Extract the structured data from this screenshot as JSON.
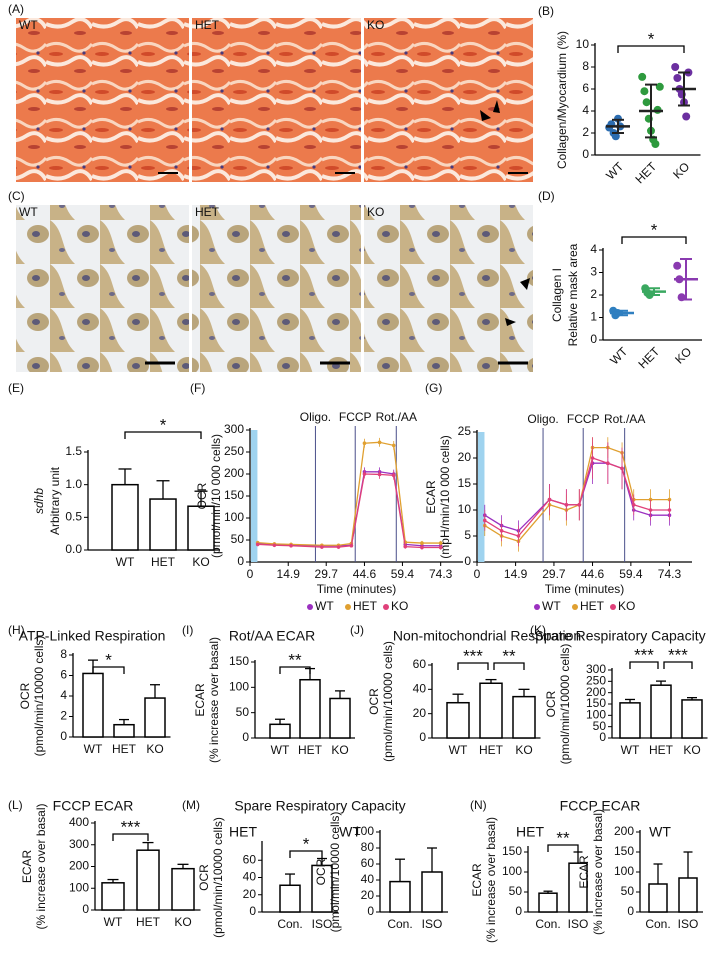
{
  "micrographs": [
    {
      "panel": "(A)",
      "labels": [
        "WT",
        "HET",
        "KO"
      ]
    },
    {
      "panel": "(C)",
      "labels": [
        "WT",
        "HET",
        "KO"
      ]
    }
  ],
  "chart_data": [
    {
      "type": "dot",
      "panel": "(B)",
      "ylabel": [
        "Collagen/Myocardium (%)"
      ],
      "categories": [
        "WT",
        "HET",
        "KO"
      ],
      "points": [
        [
          2.5,
          2.8,
          2.0,
          1.7,
          3.3,
          2.6
        ],
        [
          7.1,
          5.8,
          4.8,
          3.3,
          2.2,
          1.4,
          1.0,
          4.1,
          6.2
        ],
        [
          8.0,
          7.0,
          6.0,
          5.5,
          4.8,
          3.5,
          7.5
        ]
      ],
      "means": [
        2.6,
        4.0,
        6.0
      ],
      "sd": [
        0.6,
        2.4,
        1.5
      ],
      "colors": [
        "#2b6cb0",
        "#2e9a3e",
        "#6b2fa0"
      ],
      "summary_color": "#222222",
      "ylim": [
        0,
        10
      ],
      "yticks": [
        0,
        2,
        4,
        6,
        8,
        10
      ],
      "significance": [
        {
          "from": 0,
          "to": 2,
          "label": "*"
        }
      ]
    },
    {
      "type": "dot",
      "panel": "(D)",
      "ylabel": [
        "Collagen I",
        "Relative mask area"
      ],
      "categories": [
        "WT",
        "HET",
        "KO"
      ],
      "points": [
        [
          1.3,
          1.1,
          1.2
        ],
        [
          2.3,
          2.1,
          2.0
        ],
        [
          3.3,
          2.7,
          1.9
        ]
      ],
      "means": [
        1.2,
        2.15,
        2.7
      ],
      "sd": [
        0.1,
        0.15,
        0.9
      ],
      "colors": [
        "#2f7fc0",
        "#3aa860",
        "#8a3ab0"
      ],
      "ylim": [
        0,
        4
      ],
      "yticks": [
        0,
        1,
        2,
        3,
        4
      ],
      "significance": [
        {
          "from": 0,
          "to": 2,
          "label": "*"
        }
      ]
    },
    {
      "type": "bar",
      "panel": "(E)",
      "ylabel": [
        "sdhb",
        "Arbitrary unit"
      ],
      "categories": [
        "WT",
        "HET",
        "KO"
      ],
      "values": [
        1.0,
        0.78,
        0.67
      ],
      "errors": [
        0.24,
        0.28,
        0.23
      ],
      "color": "#ffffff",
      "edgecolor": "#000000",
      "ylim": [
        0,
        1.5
      ],
      "yticks": [
        {
          "value": 0,
          "label": "0.0"
        },
        {
          "value": 0.5,
          "label": "0.5"
        },
        {
          "value": 1,
          "label": "1.0"
        },
        {
          "value": 1.5,
          "label": "1.5"
        }
      ],
      "significance": [
        {
          "from": 0,
          "to": 2,
          "label": "*"
        }
      ]
    },
    {
      "type": "line",
      "panel": "(F)",
      "ylabel": [
        "OCR",
        "(pmol/min/10 000 cells)"
      ],
      "xlabel": "Time (minutes)",
      "x": [
        3,
        9.5,
        16,
        28,
        34.5,
        39.5,
        44.6,
        50.5,
        56,
        60.5,
        67,
        74.3
      ],
      "series": [
        {
          "name": "WT",
          "color": "#9b30c0",
          "values": [
            42,
            40,
            38,
            37,
            37,
            38,
            205,
            205,
            200,
            40,
            37,
            37
          ],
          "errors": [
            4,
            4,
            4,
            4,
            4,
            4,
            10,
            10,
            10,
            5,
            5,
            5
          ]
        },
        {
          "name": "HET",
          "color": "#e0a030",
          "values": [
            44,
            41,
            40,
            38,
            38,
            42,
            270,
            272,
            265,
            45,
            43,
            43
          ],
          "errors": [
            4,
            4,
            4,
            4,
            4,
            4,
            10,
            10,
            10,
            5,
            5,
            5
          ]
        },
        {
          "name": "KO",
          "color": "#e0407a",
          "values": [
            40,
            38,
            37,
            34,
            34,
            37,
            200,
            199,
            197,
            35,
            33,
            33
          ],
          "errors": [
            4,
            4,
            4,
            4,
            4,
            4,
            10,
            10,
            10,
            5,
            5,
            5
          ]
        }
      ],
      "annotations": [
        {
          "label": "Oligo.",
          "x": 25.5
        },
        {
          "label": "FCCP",
          "x": 41
        },
        {
          "label": "Rot./AA",
          "x": 57
        }
      ],
      "shaded_range": [
        0,
        2.5
      ],
      "xlim": [
        0,
        83
      ],
      "xticks": [
        0,
        14.9,
        29.7,
        44.6,
        59.4,
        74.3
      ],
      "ylim": [
        0,
        300
      ],
      "yticks": [
        0,
        50,
        100,
        150,
        200,
        250,
        300
      ]
    },
    {
      "type": "line",
      "panel": "(G)",
      "ylabel": [
        "ECAR",
        "(mpH/min/10 000 cells)"
      ],
      "xlabel": "Time (minutes)",
      "x": [
        3,
        9.5,
        16,
        28,
        34.5,
        39.5,
        44.6,
        50.5,
        56,
        60.5,
        67,
        74.3
      ],
      "series": [
        {
          "name": "WT",
          "color": "#9b30c0",
          "values": [
            9,
            7,
            6,
            12,
            11,
            11,
            19,
            19,
            18,
            10,
            9,
            9
          ],
          "errors": [
            2,
            2,
            2,
            3,
            3,
            3,
            4,
            4,
            4,
            2,
            2,
            2
          ]
        },
        {
          "name": "HET",
          "color": "#e0a030",
          "values": [
            7,
            5,
            4,
            11,
            10,
            11,
            22,
            22,
            21,
            12,
            12,
            12
          ],
          "errors": [
            2,
            2,
            2,
            3,
            3,
            3,
            2,
            2,
            2,
            2,
            2,
            2
          ]
        },
        {
          "name": "KO",
          "color": "#e0407a",
          "values": [
            8,
            6,
            5,
            12,
            11,
            11,
            20,
            19,
            18,
            11,
            10,
            10
          ],
          "errors": [
            2,
            2,
            2,
            3,
            3,
            3,
            4,
            4,
            4,
            2,
            2,
            2
          ]
        }
      ],
      "annotations": [
        {
          "label": "Oligo.",
          "x": 25.5
        },
        {
          "label": "FCCP",
          "x": 41
        },
        {
          "label": "Rot./AA",
          "x": 57
        }
      ],
      "shaded_range": [
        0,
        2.5
      ],
      "xlim": [
        0,
        83
      ],
      "xticks": [
        0,
        14.9,
        29.7,
        44.6,
        59.4,
        74.3
      ],
      "ylim": [
        0,
        25
      ],
      "yticks": [
        0,
        5,
        10,
        15,
        20,
        25
      ]
    },
    {
      "type": "bar",
      "panel": "(H)",
      "title": "ATP-Linked Respiration",
      "ylabel": [
        "OCR",
        "(pmol/min/10000 cells)"
      ],
      "categories": [
        "WT",
        "HET",
        "KO"
      ],
      "values": [
        6.2,
        1.2,
        3.8
      ],
      "errors": [
        1.3,
        0.5,
        1.3
      ],
      "color": "#ffffff",
      "edgecolor": "#000000",
      "ylim": [
        0,
        8
      ],
      "yticks": [
        0,
        2,
        4,
        6,
        8
      ],
      "significance": [
        {
          "from": 0,
          "to": 1,
          "label": "*"
        }
      ]
    },
    {
      "type": "bar",
      "panel": "(I)",
      "title": "Rot/AA ECAR",
      "ylabel": [
        "ECAR",
        "(% increase over basal)"
      ],
      "categories": [
        "WT",
        "HET",
        "KO"
      ],
      "values": [
        27,
        115,
        78
      ],
      "errors": [
        10,
        22,
        15
      ],
      "color": "#ffffff",
      "edgecolor": "#000000",
      "ylim": [
        0,
        150
      ],
      "yticks": [
        0,
        50,
        100,
        150
      ],
      "significance": [
        {
          "from": 0,
          "to": 1,
          "label": "**"
        }
      ]
    },
    {
      "type": "bar",
      "panel": "(J)",
      "title": "Non-mitochondrial Respiration",
      "ylabel": [
        "OCR",
        "(pmol/min/10000 cells)"
      ],
      "categories": [
        "WT",
        "HET",
        "KO"
      ],
      "values": [
        29,
        45,
        34
      ],
      "errors": [
        7,
        3,
        6
      ],
      "color": "#ffffff",
      "edgecolor": "#000000",
      "ylim": [
        0,
        60
      ],
      "yticks": [
        0,
        20,
        40,
        60
      ],
      "significance": [
        {
          "from": 0,
          "to": 1,
          "label": "***"
        },
        {
          "from": 1,
          "to": 2,
          "label": "**"
        }
      ]
    },
    {
      "type": "bar",
      "panel": "(K)",
      "title": "Spare Respiratory Capacity",
      "ylabel": [
        "OCR",
        "(pmol/min/10000 cells)"
      ],
      "categories": [
        "WT",
        "HET",
        "KO"
      ],
      "values": [
        155,
        233,
        168
      ],
      "errors": [
        15,
        18,
        10
      ],
      "color": "#ffffff",
      "edgecolor": "#000000",
      "ylim": [
        0,
        300
      ],
      "yticks": [
        0,
        50,
        100,
        150,
        200,
        250,
        300
      ],
      "significance": [
        {
          "from": 0,
          "to": 1,
          "label": "***"
        },
        {
          "from": 1,
          "to": 2,
          "label": "***"
        }
      ]
    },
    {
      "type": "bar",
      "panel": "(L)",
      "title": "FCCP ECAR",
      "ylabel": [
        "ECAR",
        "(% increase over basal)"
      ],
      "categories": [
        "WT",
        "HET",
        "KO"
      ],
      "values": [
        125,
        275,
        190
      ],
      "errors": [
        15,
        35,
        20
      ],
      "color": "#ffffff",
      "edgecolor": "#000000",
      "ylim": [
        0,
        400
      ],
      "yticks": [
        0,
        100,
        200,
        300,
        400
      ],
      "significance": [
        {
          "from": 0,
          "to": 1,
          "label": "***"
        }
      ]
    },
    {
      "type": "bar",
      "panel": "(M)",
      "title": "Spare Respiratory Capacity",
      "subtitle": "HET",
      "ylabel": [
        "OCR",
        "(pmol/min/10000 cells)"
      ],
      "categories": [
        "Con.",
        "ISO"
      ],
      "values": [
        31,
        54
      ],
      "errors": [
        13,
        8
      ],
      "color": "#ffffff",
      "edgecolor": "#000000",
      "ylim": [
        0,
        80
      ],
      "yticks": [
        0,
        20,
        40,
        60
      ],
      "significance": [
        {
          "from": 0,
          "to": 1,
          "label": "*"
        }
      ]
    },
    {
      "type": "bar",
      "subtitle": "WT",
      "ylabel": [
        "OCR",
        "(pmol/min/10000 cells)"
      ],
      "categories": [
        "Con.",
        "ISO"
      ],
      "values": [
        38,
        50
      ],
      "errors": [
        28,
        30
      ],
      "color": "#ffffff",
      "edgecolor": "#000000",
      "ylim": [
        0,
        100
      ],
      "yticks": [
        0,
        20,
        40,
        60,
        80,
        100
      ]
    },
    {
      "type": "bar",
      "panel": "(N)",
      "title": "FCCP ECAR",
      "subtitle": "HET",
      "ylabel": [
        "ECAR",
        "(% increase over basal)"
      ],
      "categories": [
        "Con.",
        "ISO"
      ],
      "values": [
        47,
        122
      ],
      "errors": [
        5,
        28
      ],
      "color": "#ffffff",
      "edgecolor": "#000000",
      "ylim": [
        0,
        160
      ],
      "yticks": [
        0,
        50,
        100,
        150
      ],
      "significance": [
        {
          "from": 0,
          "to": 1,
          "label": "**"
        }
      ]
    },
    {
      "type": "bar",
      "subtitle": "WT",
      "ylabel": [
        "ECAR",
        "(% increase over basal)"
      ],
      "categories": [
        "Con.",
        "ISO"
      ],
      "values": [
        70,
        85
      ],
      "errors": [
        50,
        65
      ],
      "color": "#ffffff",
      "edgecolor": "#000000",
      "ylim": [
        0,
        200
      ],
      "yticks": [
        0,
        50,
        100,
        150,
        200
      ]
    }
  ]
}
